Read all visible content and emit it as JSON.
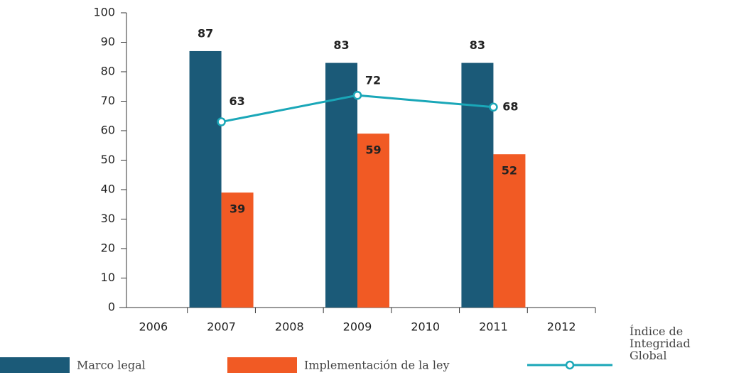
{
  "chart_data": {
    "type": "bar",
    "categories": [
      "2006",
      "2007",
      "2008",
      "2009",
      "2010",
      "2011",
      "2012"
    ],
    "series": [
      {
        "name": "Marco legal",
        "color": "#1b5a78",
        "values": [
          null,
          87,
          null,
          83,
          null,
          83,
          null
        ]
      },
      {
        "name": "Implementación de la ley",
        "color": "#f15a24",
        "values": [
          null,
          39,
          null,
          59,
          null,
          52,
          null
        ]
      },
      {
        "name": "Índice de Integridad Global",
        "type": "line",
        "color": "#1aa7b8",
        "x": [
          "2007",
          "2009",
          "2011"
        ],
        "values": [
          63,
          72,
          68
        ]
      }
    ],
    "ylim": [
      0,
      100
    ],
    "yticks": [
      0,
      10,
      20,
      30,
      40,
      50,
      60,
      70,
      80,
      90,
      100
    ],
    "grid": false
  }
}
